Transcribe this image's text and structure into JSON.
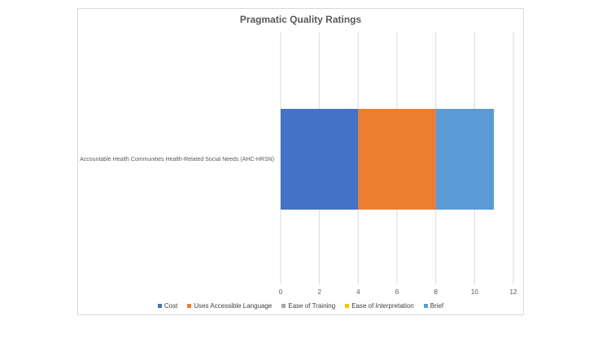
{
  "chart_data": {
    "type": "bar",
    "orientation": "horizontal",
    "stacked": true,
    "title": "Pragmatic Quality Ratings",
    "categories": [
      "Accountable Health Communities Health-Related Social Needs (AHC-HRSN)"
    ],
    "series": [
      {
        "name": "Cost",
        "values": [
          4
        ],
        "color": "#4472c4"
      },
      {
        "name": "Uses Accessible Language",
        "values": [
          4
        ],
        "color": "#ed7d31"
      },
      {
        "name": "Ease of Training",
        "values": [
          0
        ],
        "color": "#a5a5a5"
      },
      {
        "name": "Ease of Interpretation",
        "values": [
          0
        ],
        "color": "#ffc000"
      },
      {
        "name": "Brief",
        "values": [
          3
        ],
        "color": "#5b9bd5"
      }
    ],
    "xlim": [
      0,
      12
    ],
    "xticks": [
      "0",
      "2",
      "4",
      "6",
      "8",
      "10",
      "12"
    ],
    "grid": true,
    "legend_position": "bottom"
  }
}
